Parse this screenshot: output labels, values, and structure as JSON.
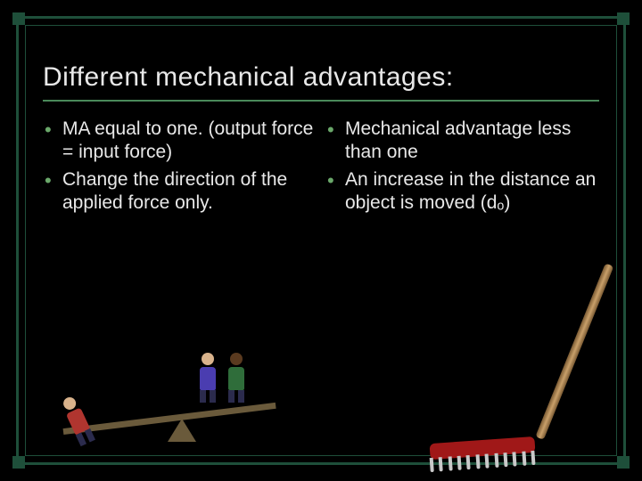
{
  "theme": {
    "background": "#000000",
    "frame_color": "#1e4f3a",
    "title_color": "#e8e8e8",
    "text_color": "#e8e8e8",
    "bullet_color": "#6aa86a",
    "underline_color": "#4a8a5a"
  },
  "title": "Different mechanical advantages:",
  "left_column": {
    "items": [
      "MA equal to one. (output force = input force)",
      "Change the direction of the applied force only."
    ]
  },
  "right_column": {
    "items": [
      "Mechanical advantage less than one",
      "An increase in the distance an object is moved (dₒ)"
    ]
  },
  "images": {
    "left": "lever-tug-of-war-cartoon",
    "right": "rake-tool"
  }
}
